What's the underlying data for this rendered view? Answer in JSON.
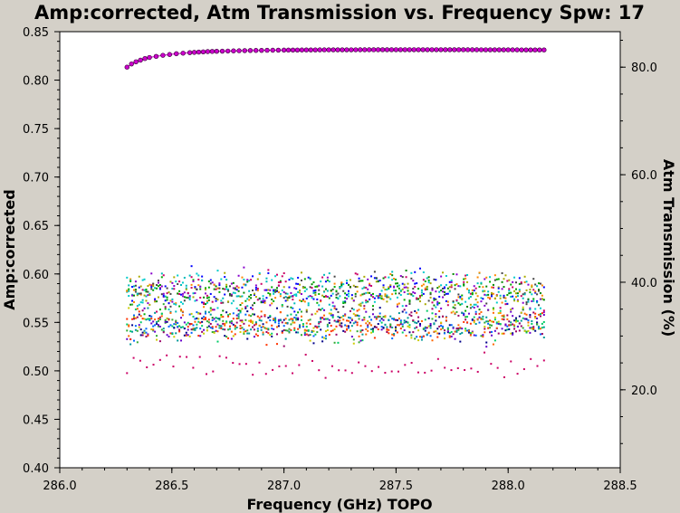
{
  "chart_data": {
    "type": "scatter",
    "title": "Amp:corrected, Atm Transmission vs. Frequency Spw: 17",
    "xlabel": "Frequency (GHz) TOPO",
    "ylabel": "Amp:corrected",
    "y2label": "Atm Transmission (%)",
    "xlim": [
      286.0,
      288.5
    ],
    "ylim": [
      0.4,
      0.85
    ],
    "y2lim": [
      5.5,
      86.6
    ],
    "x_ticks": [
      "286.0",
      "286.5",
      "287.0",
      "287.5",
      "288.0",
      "288.5"
    ],
    "y_ticks": [
      "0.40",
      "0.45",
      "0.50",
      "0.55",
      "0.60",
      "0.65",
      "0.70",
      "0.75",
      "0.80",
      "0.85"
    ],
    "y2_ticks": [
      "20.0",
      "40.0",
      "60.0",
      "80.0"
    ],
    "grid": false,
    "series": [
      {
        "color": "#cc00cc",
        "marker": "circle",
        "axis": "right",
        "points": [
          [
            286.3,
            80.0
          ],
          [
            286.32,
            80.6
          ],
          [
            286.34,
            81.0
          ],
          [
            286.36,
            81.3
          ],
          [
            286.38,
            81.6
          ],
          [
            286.4,
            81.8
          ],
          [
            286.43,
            82.0
          ],
          [
            286.46,
            82.2
          ],
          [
            286.49,
            82.35
          ],
          [
            286.52,
            82.5
          ],
          [
            286.55,
            82.6
          ],
          [
            286.58,
            82.7
          ],
          [
            286.62,
            82.8
          ],
          [
            286.66,
            82.9
          ],
          [
            286.7,
            82.95
          ],
          [
            286.75,
            83.0
          ],
          [
            286.8,
            83.05
          ],
          [
            286.85,
            83.1
          ],
          [
            286.9,
            83.12
          ],
          [
            286.95,
            83.15
          ],
          [
            287.0,
            83.17
          ],
          [
            287.1,
            83.2
          ],
          [
            287.2,
            83.22
          ],
          [
            287.3,
            83.23
          ],
          [
            287.4,
            83.24
          ],
          [
            287.5,
            83.25
          ],
          [
            287.6,
            83.25
          ],
          [
            287.7,
            83.25
          ],
          [
            287.8,
            83.24
          ],
          [
            287.9,
            83.23
          ],
          [
            288.0,
            83.22
          ],
          [
            288.1,
            83.2
          ],
          [
            288.16,
            83.2
          ]
        ]
      }
    ],
    "scatter_clouds": [
      {
        "x_start": 286.3,
        "x_end": 288.16,
        "y_center": 0.581,
        "y_spread": 0.014,
        "colors": [
          "#0000ff",
          "#00aa00",
          "#ff8800",
          "#00cccc",
          "#8800cc",
          "#008800",
          "#444444",
          "#cc0066",
          "#00bbbb",
          "#aaaa00"
        ]
      },
      {
        "x_start": 286.3,
        "x_end": 288.16,
        "y_center": 0.548,
        "y_spread": 0.012,
        "colors": [
          "#0066ff",
          "#33aa33",
          "#ff6600",
          "#009999",
          "#6600cc",
          "#cccc00",
          "#000088",
          "#990066",
          "#00cc66",
          "#ff3300"
        ]
      },
      {
        "x_start": 286.3,
        "x_end": 288.16,
        "y_center": 0.505,
        "y_spread": 0.008,
        "colors": [
          "#cc0066"
        ]
      }
    ]
  }
}
